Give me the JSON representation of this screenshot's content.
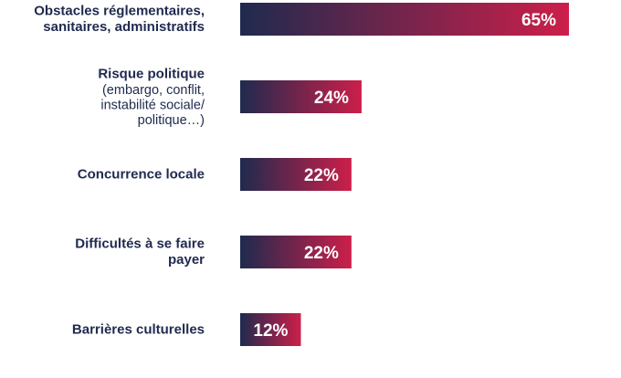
{
  "chart_data": {
    "type": "bar",
    "orientation": "horizontal",
    "title": "",
    "categories": [
      {
        "lines": [
          "Obstacles réglementaires,",
          "sanitaires, administratifs"
        ],
        "sub_lines": []
      },
      {
        "lines": [
          "Risque politique"
        ],
        "sub_lines": [
          "(embargo, conflit,",
          "instabilité sociale/",
          "politique…)"
        ]
      },
      {
        "lines": [
          "Concurrence locale"
        ],
        "sub_lines": []
      },
      {
        "lines": [
          "Difficultés à se faire",
          "payer"
        ],
        "sub_lines": []
      },
      {
        "lines": [
          "Barrières culturelles"
        ],
        "sub_lines": []
      }
    ],
    "values": [
      65,
      24,
      22,
      22,
      12
    ],
    "value_labels": [
      "65%",
      "24%",
      "22%",
      "22%",
      "12%"
    ],
    "unit": "%",
    "xlim": [
      0,
      65
    ],
    "grid": false,
    "legend": "none",
    "colors": {
      "gradient_start": "#1f2a4e",
      "gradient_end": "#cc1f4a",
      "label_text": "#1f2a4e",
      "value_text": "#ffffff"
    }
  }
}
